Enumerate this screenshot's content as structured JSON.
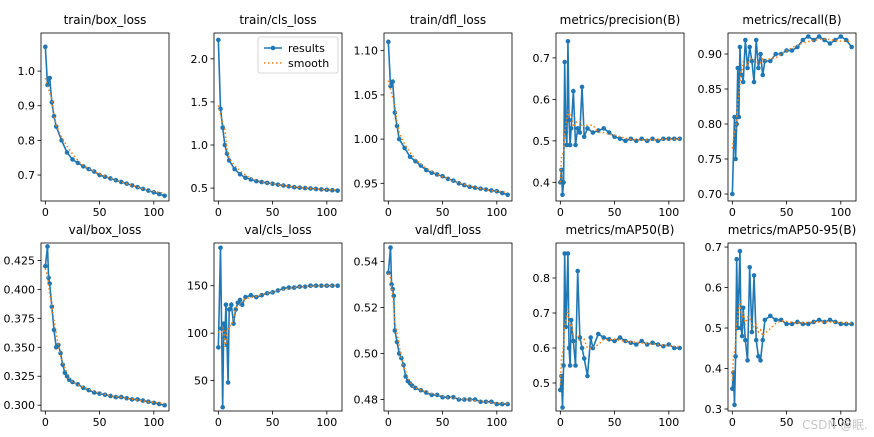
{
  "legend": {
    "results_label": "results",
    "smooth_label": "smooth"
  },
  "colors": {
    "results": "#1f77b4",
    "smooth": "#ff7f0e",
    "axis": "#000000"
  },
  "watermark": "CSDN @眠.",
  "chart_data": [
    {
      "type": "line",
      "title": "train/box_loss",
      "ylim": [
        0.625,
        1.11
      ],
      "yticks": [
        0.7,
        0.8,
        0.9,
        1.0
      ],
      "xticks": [
        0,
        50,
        100
      ],
      "series": [
        {
          "name": "results",
          "x": [
            0,
            2,
            4,
            6,
            8,
            10,
            15,
            20,
            25,
            30,
            35,
            40,
            45,
            50,
            55,
            60,
            65,
            70,
            75,
            80,
            85,
            90,
            95,
            100,
            105,
            110
          ],
          "values": [
            1.07,
            0.96,
            0.98,
            0.91,
            0.87,
            0.84,
            0.8,
            0.765,
            0.745,
            0.735,
            0.725,
            0.717,
            0.71,
            0.7,
            0.695,
            0.69,
            0.685,
            0.68,
            0.675,
            0.67,
            0.665,
            0.66,
            0.655,
            0.65,
            0.645,
            0.64
          ]
        }
      ]
    },
    {
      "type": "line",
      "title": "train/cls_loss",
      "ylim": [
        0.35,
        2.3
      ],
      "yticks": [
        0.5,
        1.0,
        1.5,
        2.0
      ],
      "xticks": [
        0,
        50,
        100
      ],
      "legend": "top-right",
      "series": [
        {
          "name": "results",
          "x": [
            0,
            2,
            4,
            6,
            8,
            10,
            15,
            20,
            25,
            30,
            35,
            40,
            45,
            50,
            55,
            60,
            65,
            70,
            75,
            80,
            85,
            90,
            95,
            100,
            105,
            110
          ],
          "values": [
            2.22,
            1.42,
            1.2,
            1.0,
            0.9,
            0.82,
            0.72,
            0.66,
            0.62,
            0.6,
            0.58,
            0.57,
            0.56,
            0.55,
            0.54,
            0.53,
            0.52,
            0.51,
            0.505,
            0.5,
            0.495,
            0.49,
            0.485,
            0.48,
            0.475,
            0.47
          ]
        }
      ]
    },
    {
      "type": "line",
      "title": "train/dfl_loss",
      "ylim": [
        0.93,
        1.12
      ],
      "yticks": [
        0.95,
        1.0,
        1.05,
        1.1
      ],
      "xticks": [
        0,
        50,
        100
      ],
      "series": [
        {
          "name": "results",
          "x": [
            0,
            2,
            4,
            6,
            8,
            10,
            15,
            20,
            25,
            30,
            35,
            40,
            45,
            50,
            55,
            60,
            65,
            70,
            75,
            80,
            85,
            90,
            95,
            100,
            105,
            110
          ],
          "values": [
            1.11,
            1.06,
            1.065,
            1.03,
            1.015,
            1.0,
            0.99,
            0.98,
            0.975,
            0.97,
            0.965,
            0.962,
            0.96,
            0.958,
            0.955,
            0.953,
            0.95,
            0.948,
            0.946,
            0.945,
            0.944,
            0.943,
            0.942,
            0.941,
            0.939,
            0.937
          ]
        }
      ]
    },
    {
      "type": "line",
      "title": "metrics/precision(B)",
      "ylim": [
        0.355,
        0.76
      ],
      "yticks": [
        0.4,
        0.5,
        0.6,
        0.7
      ],
      "xticks": [
        0,
        50,
        100
      ],
      "series": [
        {
          "name": "results",
          "x": [
            0,
            1,
            2,
            3,
            4,
            5,
            6,
            7,
            8,
            9,
            10,
            12,
            14,
            16,
            18,
            20,
            22,
            25,
            30,
            35,
            40,
            45,
            50,
            55,
            60,
            65,
            70,
            75,
            80,
            85,
            90,
            95,
            100,
            105,
            110
          ],
          "values": [
            0.4,
            0.43,
            0.37,
            0.4,
            0.69,
            0.52,
            0.49,
            0.74,
            0.55,
            0.49,
            0.53,
            0.62,
            0.49,
            0.53,
            0.52,
            0.63,
            0.51,
            0.53,
            0.52,
            0.525,
            0.53,
            0.52,
            0.51,
            0.505,
            0.5,
            0.505,
            0.5,
            0.505,
            0.5,
            0.505,
            0.5,
            0.505,
            0.505,
            0.505,
            0.505
          ]
        }
      ]
    },
    {
      "type": "line",
      "title": "metrics/recall(B)",
      "ylim": [
        0.69,
        0.93
      ],
      "yticks": [
        0.7,
        0.75,
        0.8,
        0.85,
        0.9
      ],
      "xticks": [
        0,
        50,
        100
      ],
      "series": [
        {
          "name": "results",
          "x": [
            0,
            2,
            3,
            4,
            5,
            6,
            7,
            8,
            9,
            10,
            12,
            14,
            16,
            18,
            20,
            22,
            24,
            26,
            28,
            30,
            35,
            40,
            45,
            50,
            55,
            60,
            65,
            70,
            75,
            80,
            85,
            90,
            95,
            100,
            105,
            110
          ],
          "values": [
            0.7,
            0.81,
            0.75,
            0.8,
            0.88,
            0.81,
            0.91,
            0.87,
            0.87,
            0.86,
            0.92,
            0.88,
            0.91,
            0.89,
            0.86,
            0.92,
            0.88,
            0.9,
            0.87,
            0.89,
            0.89,
            0.9,
            0.9,
            0.905,
            0.905,
            0.91,
            0.92,
            0.925,
            0.92,
            0.925,
            0.92,
            0.915,
            0.92,
            0.925,
            0.92,
            0.91
          ]
        }
      ]
    },
    {
      "type": "line",
      "title": "val/box_loss",
      "ylim": [
        0.295,
        0.44
      ],
      "yticks": [
        0.3,
        0.325,
        0.35,
        0.375,
        0.4,
        0.425
      ],
      "xticks": [
        0,
        50,
        100
      ],
      "series": [
        {
          "name": "results",
          "x": [
            0,
            2,
            3,
            4,
            6,
            8,
            10,
            12,
            14,
            16,
            18,
            20,
            22,
            25,
            30,
            35,
            40,
            45,
            50,
            55,
            60,
            65,
            70,
            75,
            80,
            85,
            90,
            95,
            100,
            105,
            110
          ],
          "values": [
            0.42,
            0.437,
            0.41,
            0.405,
            0.385,
            0.365,
            0.35,
            0.352,
            0.345,
            0.335,
            0.328,
            0.325,
            0.322,
            0.32,
            0.318,
            0.315,
            0.313,
            0.311,
            0.31,
            0.309,
            0.308,
            0.307,
            0.307,
            0.306,
            0.305,
            0.305,
            0.304,
            0.303,
            0.302,
            0.301,
            0.3
          ]
        }
      ]
    },
    {
      "type": "line",
      "title": "val/cls_loss",
      "ylim": [
        18,
        195
      ],
      "yticks": [
        50,
        100,
        150
      ],
      "xticks": [
        0,
        50,
        100
      ],
      "series": [
        {
          "name": "results",
          "x": [
            0,
            2,
            3,
            4,
            5,
            6,
            7,
            8,
            9,
            10,
            12,
            14,
            16,
            18,
            20,
            22,
            25,
            30,
            35,
            40,
            45,
            50,
            55,
            60,
            65,
            70,
            75,
            80,
            85,
            90,
            95,
            100,
            105,
            110
          ],
          "values": [
            85,
            190,
            105,
            22,
            110,
            95,
            130,
            88,
            48,
            125,
            130,
            110,
            125,
            132,
            135,
            130,
            138,
            140,
            138,
            140,
            142,
            143,
            145,
            147,
            148,
            148,
            149,
            149,
            150,
            150,
            150,
            150,
            150,
            150
          ]
        }
      ]
    },
    {
      "type": "line",
      "title": "val/dfl_loss",
      "ylim": [
        0.475,
        0.548
      ],
      "yticks": [
        0.48,
        0.5,
        0.52,
        0.54
      ],
      "xticks": [
        0,
        50,
        100
      ],
      "series": [
        {
          "name": "results",
          "x": [
            0,
            2,
            3,
            4,
            5,
            6,
            8,
            10,
            12,
            14,
            16,
            18,
            20,
            22,
            25,
            30,
            35,
            40,
            45,
            50,
            55,
            60,
            65,
            70,
            75,
            80,
            85,
            90,
            95,
            100,
            105,
            110
          ],
          "values": [
            0.535,
            0.546,
            0.53,
            0.528,
            0.525,
            0.51,
            0.505,
            0.5,
            0.498,
            0.495,
            0.49,
            0.488,
            0.487,
            0.486,
            0.485,
            0.484,
            0.483,
            0.482,
            0.482,
            0.481,
            0.481,
            0.481,
            0.48,
            0.48,
            0.48,
            0.48,
            0.479,
            0.479,
            0.479,
            0.478,
            0.478,
            0.478
          ]
        }
      ]
    },
    {
      "type": "line",
      "title": "metrics/mAP50(B)",
      "ylim": [
        0.42,
        0.9
      ],
      "yticks": [
        0.5,
        0.6,
        0.7,
        0.8
      ],
      "xticks": [
        0,
        50,
        100
      ],
      "series": [
        {
          "name": "results",
          "x": [
            0,
            1,
            2,
            3,
            4,
            5,
            6,
            7,
            8,
            9,
            10,
            12,
            14,
            16,
            18,
            20,
            22,
            25,
            28,
            30,
            35,
            40,
            45,
            50,
            55,
            60,
            65,
            70,
            75,
            80,
            85,
            90,
            95,
            100,
            105,
            110
          ],
          "values": [
            0.48,
            0.52,
            0.43,
            0.55,
            0.87,
            0.66,
            0.75,
            0.87,
            0.6,
            0.55,
            0.68,
            0.62,
            0.55,
            0.82,
            0.63,
            0.6,
            0.57,
            0.52,
            0.63,
            0.6,
            0.64,
            0.63,
            0.625,
            0.62,
            0.63,
            0.62,
            0.615,
            0.61,
            0.62,
            0.61,
            0.615,
            0.61,
            0.605,
            0.61,
            0.6,
            0.6
          ]
        }
      ]
    },
    {
      "type": "line",
      "title": "metrics/mAP50-95(B)",
      "ylim": [
        0.295,
        0.71
      ],
      "yticks": [
        0.3,
        0.4,
        0.5,
        0.6,
        0.7
      ],
      "xticks": [
        0,
        50,
        100
      ],
      "series": [
        {
          "name": "results",
          "x": [
            0,
            1,
            2,
            3,
            4,
            5,
            6,
            7,
            8,
            9,
            10,
            12,
            14,
            16,
            18,
            20,
            22,
            24,
            26,
            28,
            30,
            35,
            40,
            45,
            50,
            55,
            60,
            65,
            70,
            75,
            80,
            85,
            90,
            95,
            100,
            105,
            110
          ],
          "values": [
            0.35,
            0.39,
            0.31,
            0.43,
            0.67,
            0.5,
            0.59,
            0.69,
            0.5,
            0.48,
            0.55,
            0.47,
            0.42,
            0.65,
            0.49,
            0.63,
            0.47,
            0.43,
            0.42,
            0.47,
            0.52,
            0.53,
            0.52,
            0.52,
            0.51,
            0.51,
            0.515,
            0.51,
            0.51,
            0.515,
            0.52,
            0.515,
            0.52,
            0.515,
            0.51,
            0.51,
            0.51
          ]
        }
      ]
    }
  ]
}
